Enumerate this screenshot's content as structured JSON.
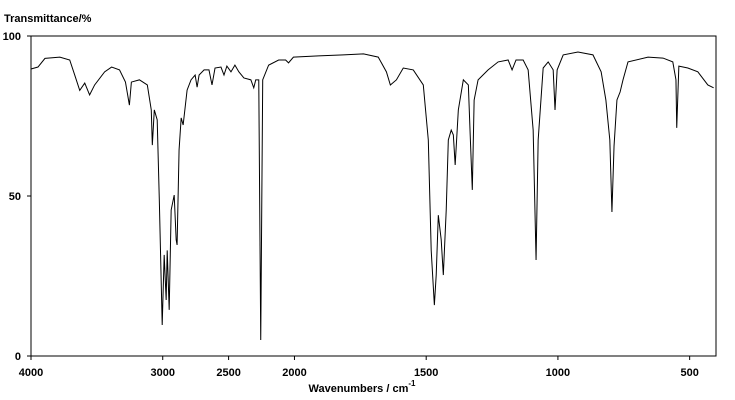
{
  "chart_data": {
    "type": "line",
    "ylabel": "Transmittance/%",
    "xlabel": "Wavenumbers / cm",
    "xlabel_sup": "-1",
    "xlim": [
      4000,
      400
    ],
    "xticks": [
      4000,
      3000,
      2500,
      2000,
      1500,
      1000,
      500
    ],
    "xbreak": 2000,
    "ylim": [
      0,
      100
    ],
    "yticks": [
      0,
      50,
      100
    ],
    "x": [
      4000,
      3947,
      3894,
      3781,
      3706,
      3668,
      3630,
      3592,
      3555,
      3517,
      3441,
      3388,
      3328,
      3283,
      3253,
      3238,
      3177,
      3117,
      3087,
      3079,
      3064,
      3042,
      3026,
      3004,
      2989,
      2974,
      2966,
      2951,
      2936,
      2913,
      2898,
      2891,
      2876,
      2860,
      2845,
      2815,
      2785,
      2754,
      2739,
      2724,
      2686,
      2649,
      2626,
      2603,
      2558,
      2535,
      2513,
      2482,
      2452,
      2422,
      2384,
      2331,
      2309,
      2294,
      2271,
      2256,
      2241,
      2196,
      2120,
      2067,
      2045,
      2008,
      1909,
      1814,
      1738,
      1682,
      1651,
      1636,
      1613,
      1587,
      1549,
      1511,
      1492,
      1481,
      1469,
      1462,
      1454,
      1443,
      1435,
      1424,
      1416,
      1405,
      1397,
      1390,
      1378,
      1359,
      1340,
      1333,
      1325,
      1318,
      1303,
      1265,
      1227,
      1189,
      1174,
      1159,
      1132,
      1113,
      1094,
      1083,
      1075,
      1056,
      1037,
      1018,
      1011,
      1003,
      980,
      924,
      867,
      836,
      818,
      803,
      795,
      787,
      776,
      764,
      753,
      734,
      658,
      601,
      564,
      552,
      549,
      541,
      507,
      469,
      431,
      409
    ],
    "series": [
      {
        "color": "#000000",
        "values": [
          89.7,
          90.3,
          93,
          93.4,
          92.5,
          87.8,
          83,
          85.3,
          81.6,
          84.7,
          88.8,
          90.3,
          89.4,
          85.6,
          78.4,
          85.6,
          86.3,
          84.7,
          76.9,
          65.9,
          76.9,
          73.8,
          48.8,
          9.7,
          31.6,
          17.5,
          33,
          14.4,
          45.6,
          50.3,
          36.3,
          34.7,
          64.4,
          74.4,
          72.2,
          83.1,
          86.3,
          87.8,
          84,
          87.8,
          89.4,
          89.4,
          84.7,
          90,
          90.3,
          87.8,
          90.6,
          88.8,
          90.9,
          88.8,
          86.9,
          86.3,
          83.8,
          86.3,
          86.3,
          5,
          86.3,
          90.9,
          92.5,
          92.5,
          91.6,
          93.4,
          93.8,
          94.1,
          94.4,
          93.4,
          88.8,
          84.7,
          86.3,
          90,
          89.4,
          84.7,
          67.5,
          33,
          15.9,
          25.3,
          44,
          36.3,
          25.3,
          45.6,
          67.5,
          70.6,
          69.1,
          59.7,
          76.9,
          86.3,
          84.7,
          69.1,
          51.9,
          80,
          86.3,
          89.4,
          91.9,
          92.5,
          89.4,
          92.5,
          92.5,
          89.4,
          70.6,
          30,
          67.5,
          90,
          91.9,
          89.4,
          76.9,
          89.4,
          94.1,
          95,
          94.1,
          88.8,
          80,
          67.5,
          45,
          65.6,
          80,
          82.5,
          86.3,
          91.9,
          93.4,
          93.1,
          91.9,
          86.3,
          71.3,
          90.6,
          90,
          88.8,
          84.7,
          83.8
        ]
      }
    ]
  }
}
